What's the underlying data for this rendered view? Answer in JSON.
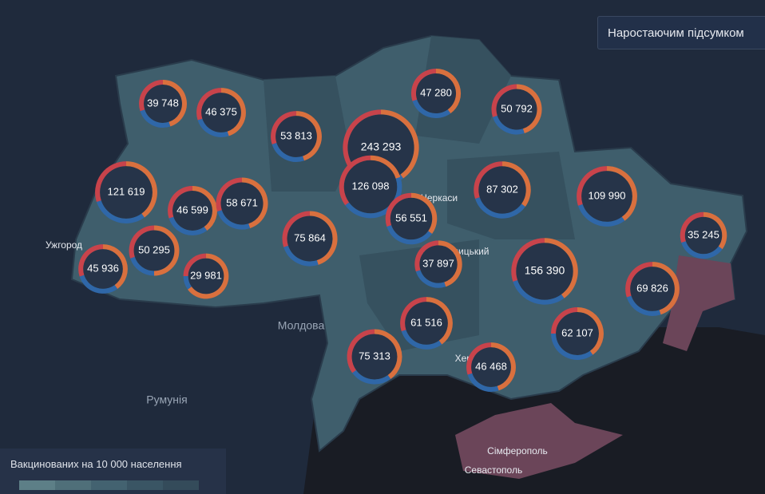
{
  "title_button": "Наростаючим підсумком",
  "legend": {
    "title": "Вакцинованих на 10 000 населення"
  },
  "place_labels": [
    "Ужгород",
    "Молдова",
    "Румунія",
    "Черкаси",
    "Кропивницький",
    "Херсон",
    "Сімферополь",
    "Севастополь"
  ],
  "segment_colors": [
    "#d9703e",
    "#2f67a8",
    "#c8434b"
  ],
  "regions": [
    {
      "value": 39748,
      "value_label": "39 748",
      "shares": [
        45,
        25,
        30
      ]
    },
    {
      "value": 46375,
      "value_label": "46 375",
      "shares": [
        45,
        25,
        30
      ]
    },
    {
      "value": 53813,
      "value_label": "53 813",
      "shares": [
        45,
        25,
        30
      ]
    },
    {
      "value": 243293,
      "value_label": "243 293",
      "shares": [
        40,
        20,
        40
      ]
    },
    {
      "value": 47280,
      "value_label": "47 280",
      "shares": [
        40,
        30,
        30
      ]
    },
    {
      "value": 50792,
      "value_label": "50 792",
      "shares": [
        45,
        25,
        30
      ]
    },
    {
      "value": 121619,
      "value_label": "121 619",
      "shares": [
        40,
        30,
        30
      ]
    },
    {
      "value": 46599,
      "value_label": "46 599",
      "shares": [
        40,
        30,
        30
      ]
    },
    {
      "value": 58671,
      "value_label": "58 671",
      "shares": [
        45,
        25,
        30
      ]
    },
    {
      "value": 126098,
      "value_label": "126 098",
      "shares": [
        20,
        45,
        35
      ]
    },
    {
      "value": 56551,
      "value_label": "56 551",
      "shares": [
        35,
        35,
        30
      ]
    },
    {
      "value": 87302,
      "value_label": "87 302",
      "shares": [
        35,
        35,
        30
      ]
    },
    {
      "value": 109990,
      "value_label": "109 990",
      "shares": [
        40,
        30,
        30
      ]
    },
    {
      "value": 35245,
      "value_label": "35 245",
      "shares": [
        35,
        35,
        30
      ]
    },
    {
      "value": 45936,
      "value_label": "45 936",
      "shares": [
        40,
        30,
        30
      ]
    },
    {
      "value": 50295,
      "value_label": "50 295",
      "shares": [
        50,
        20,
        30
      ]
    },
    {
      "value": 29981,
      "value_label": "29 981",
      "shares": [
        65,
        10,
        25
      ]
    },
    {
      "value": 75864,
      "value_label": "75 864",
      "shares": [
        45,
        25,
        30
      ]
    },
    {
      "value": 37897,
      "value_label": "37 897",
      "shares": [
        45,
        25,
        30
      ]
    },
    {
      "value": 156390,
      "value_label": "156 390",
      "shares": [
        40,
        30,
        30
      ]
    },
    {
      "value": 69826,
      "value_label": "69 826",
      "shares": [
        45,
        25,
        30
      ]
    },
    {
      "value": 61516,
      "value_label": "61 516",
      "shares": [
        40,
        30,
        30
      ]
    },
    {
      "value": 62107,
      "value_label": "62 107",
      "shares": [
        40,
        35,
        25
      ]
    },
    {
      "value": 75313,
      "value_label": "75 313",
      "shares": [
        40,
        25,
        35
      ]
    },
    {
      "value": 46468,
      "value_label": "46 468",
      "shares": [
        45,
        25,
        30
      ]
    }
  ]
}
